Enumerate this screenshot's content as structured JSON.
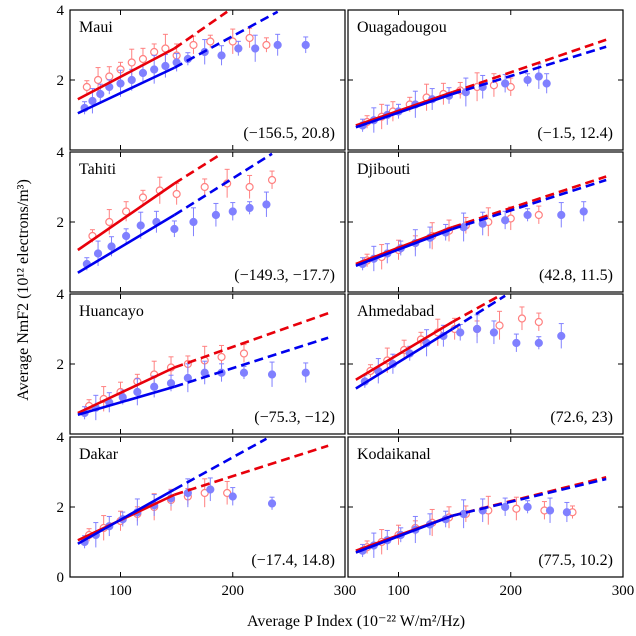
{
  "chart_data": {
    "type": "scatter",
    "xlabel": "Average P Index (10⁻²² W/m²/Hz)",
    "ylabel": "Average NmF2 (10¹² electrons/m³)",
    "xlim": [
      55,
      300
    ],
    "ylim": [
      0,
      4
    ],
    "x_ticks": [
      "100",
      "200",
      "300"
    ],
    "y_ticks": [
      "0",
      "2",
      "4"
    ],
    "colors": {
      "red_series": "#e8000b",
      "blue_series": "#0000ee",
      "red_points": "#ff8080",
      "blue_points": "#8080ff"
    },
    "panels": [
      {
        "title": "Maui",
        "coords": "(−156.5, 20.8)",
        "red_fit": {
          "solid": [
            [
              62,
              1.45
            ],
            [
              148,
              2.9
            ]
          ],
          "dashed": [
            [
              148,
              2.9
            ],
            [
              195,
              3.95
            ]
          ]
        },
        "blue_fit": {
          "solid": [
            [
              62,
              1.05
            ],
            [
              148,
              2.35
            ]
          ],
          "dashed": [
            [
              148,
              2.35
            ],
            [
              240,
              3.95
            ]
          ]
        },
        "red_points": [
          [
            70,
            1.8
          ],
          [
            80,
            2.0
          ],
          [
            90,
            2.1
          ],
          [
            100,
            2.3
          ],
          [
            110,
            2.5
          ],
          [
            120,
            2.6
          ],
          [
            130,
            2.8
          ],
          [
            140,
            2.9
          ],
          [
            150,
            2.7
          ],
          [
            165,
            3.0
          ],
          [
            180,
            3.1
          ],
          [
            200,
            3.1
          ],
          [
            215,
            3.2
          ],
          [
            230,
            3.0
          ]
        ],
        "blue_points": [
          [
            68,
            1.2
          ],
          [
            75,
            1.4
          ],
          [
            82,
            1.6
          ],
          [
            90,
            1.8
          ],
          [
            100,
            1.9
          ],
          [
            110,
            2.0
          ],
          [
            120,
            2.2
          ],
          [
            130,
            2.3
          ],
          [
            140,
            2.4
          ],
          [
            150,
            2.5
          ],
          [
            160,
            2.6
          ],
          [
            175,
            2.8
          ],
          [
            190,
            2.7
          ],
          [
            205,
            2.9
          ],
          [
            220,
            2.9
          ],
          [
            240,
            3.0
          ],
          [
            265,
            3.0
          ]
        ]
      },
      {
        "title": "Ouagadougou",
        "coords": "(−1.5, 12.4)",
        "red_fit": {
          "solid": [
            [
              62,
              0.7
            ],
            [
              148,
              1.65
            ]
          ],
          "dashed": [
            [
              148,
              1.65
            ],
            [
              285,
              3.15
            ]
          ]
        },
        "blue_fit": {
          "solid": [
            [
              62,
              0.65
            ],
            [
              148,
              1.6
            ]
          ],
          "dashed": [
            [
              148,
              1.6
            ],
            [
              285,
              2.95
            ]
          ]
        },
        "red_points": [
          [
            72,
            0.8
          ],
          [
            85,
            0.95
          ],
          [
            95,
            1.1
          ],
          [
            110,
            1.3
          ],
          [
            125,
            1.5
          ],
          [
            140,
            1.6
          ],
          [
            155,
            1.7
          ],
          [
            170,
            1.8
          ],
          [
            185,
            1.85
          ],
          [
            200,
            1.8
          ]
        ],
        "blue_points": [
          [
            68,
            0.7
          ],
          [
            78,
            0.85
          ],
          [
            90,
            1.0
          ],
          [
            100,
            1.1
          ],
          [
            115,
            1.3
          ],
          [
            130,
            1.45
          ],
          [
            145,
            1.55
          ],
          [
            160,
            1.65
          ],
          [
            175,
            1.8
          ],
          [
            195,
            1.9
          ],
          [
            215,
            2.0
          ],
          [
            225,
            2.1
          ],
          [
            232,
            1.9
          ]
        ]
      },
      {
        "title": "Tahiti",
        "coords": "(−149.3, −17.7)",
        "red_fit": {
          "solid": [
            [
              62,
              1.2
            ],
            [
              148,
              3.1
            ]
          ],
          "dashed": [
            [
              148,
              3.1
            ],
            [
              190,
              3.95
            ]
          ]
        },
        "blue_fit": {
          "solid": [
            [
              62,
              0.55
            ],
            [
              148,
              2.2
            ]
          ],
          "dashed": [
            [
              148,
              2.2
            ],
            [
              235,
              3.95
            ]
          ]
        },
        "red_points": [
          [
            75,
            1.6
          ],
          [
            90,
            2.0
          ],
          [
            105,
            2.3
          ],
          [
            120,
            2.7
          ],
          [
            135,
            2.9
          ],
          [
            150,
            2.8
          ],
          [
            175,
            3.0
          ],
          [
            195,
            3.1
          ],
          [
            215,
            3.0
          ],
          [
            235,
            3.2
          ]
        ],
        "blue_points": [
          [
            70,
            0.8
          ],
          [
            80,
            1.1
          ],
          [
            92,
            1.3
          ],
          [
            105,
            1.6
          ],
          [
            118,
            1.9
          ],
          [
            132,
            2.0
          ],
          [
            148,
            1.8
          ],
          [
            165,
            2.0
          ],
          [
            185,
            2.2
          ],
          [
            200,
            2.3
          ],
          [
            215,
            2.4
          ],
          [
            230,
            2.5
          ]
        ]
      },
      {
        "title": "Djibouti",
        "coords": "(42.8, 11.5)",
        "red_fit": {
          "solid": [
            [
              62,
              0.8
            ],
            [
              148,
              1.85
            ]
          ],
          "dashed": [
            [
              148,
              1.85
            ],
            [
              285,
              3.3
            ]
          ]
        },
        "blue_fit": {
          "solid": [
            [
              62,
              0.75
            ],
            [
              148,
              1.8
            ]
          ],
          "dashed": [
            [
              148,
              1.8
            ],
            [
              285,
              3.2
            ]
          ]
        },
        "red_points": [
          [
            72,
            0.9
          ],
          [
            85,
            1.0
          ],
          [
            100,
            1.2
          ],
          [
            115,
            1.4
          ],
          [
            130,
            1.6
          ],
          [
            145,
            1.75
          ],
          [
            160,
            1.9
          ],
          [
            180,
            2.0
          ],
          [
            200,
            2.1
          ],
          [
            225,
            2.2
          ]
        ],
        "blue_points": [
          [
            68,
            0.8
          ],
          [
            78,
            0.95
          ],
          [
            90,
            1.1
          ],
          [
            102,
            1.25
          ],
          [
            115,
            1.4
          ],
          [
            128,
            1.55
          ],
          [
            142,
            1.7
          ],
          [
            158,
            1.85
          ],
          [
            175,
            1.95
          ],
          [
            195,
            2.05
          ],
          [
            215,
            2.2
          ],
          [
            245,
            2.2
          ],
          [
            265,
            2.3
          ]
        ]
      },
      {
        "title": "Huancayo",
        "coords": "(−75.3, −12)",
        "red_fit": {
          "solid": [
            [
              62,
              0.6
            ],
            [
              148,
              1.9
            ]
          ],
          "dashed": [
            [
              148,
              1.9
            ],
            [
              285,
              3.45
            ]
          ]
        },
        "blue_fit": {
          "solid": [
            [
              62,
              0.55
            ],
            [
              148,
              1.35
            ]
          ],
          "dashed": [
            [
              148,
              1.35
            ],
            [
              285,
              2.75
            ]
          ]
        },
        "red_points": [
          [
            72,
            0.8
          ],
          [
            85,
            1.0
          ],
          [
            100,
            1.2
          ],
          [
            115,
            1.5
          ],
          [
            130,
            1.7
          ],
          [
            145,
            1.9
          ],
          [
            160,
            2.0
          ],
          [
            175,
            2.1
          ],
          [
            190,
            2.2
          ],
          [
            210,
            2.3
          ]
        ],
        "blue_points": [
          [
            68,
            0.6
          ],
          [
            78,
            0.75
          ],
          [
            90,
            0.9
          ],
          [
            102,
            1.05
          ],
          [
            115,
            1.2
          ],
          [
            130,
            1.35
          ],
          [
            145,
            1.45
          ],
          [
            160,
            1.6
          ],
          [
            175,
            1.75
          ],
          [
            190,
            1.75
          ],
          [
            210,
            1.75
          ],
          [
            235,
            1.7
          ],
          [
            265,
            1.75
          ]
        ]
      },
      {
        "title": "Ahmedabad",
        "coords": "(72.6, 23)",
        "red_fit": {
          "solid": [
            [
              62,
              1.55
            ],
            [
              148,
              3.2
            ]
          ],
          "dashed": [
            [
              148,
              3.2
            ],
            [
              190,
              3.95
            ]
          ]
        },
        "blue_fit": {
          "solid": [
            [
              62,
              1.3
            ],
            [
              148,
              3.0
            ]
          ],
          "dashed": [
            [
              148,
              3.0
            ],
            [
              195,
              3.95
            ]
          ]
        },
        "red_points": [
          [
            75,
            1.8
          ],
          [
            90,
            2.1
          ],
          [
            105,
            2.4
          ],
          [
            120,
            2.7
          ],
          [
            135,
            2.9
          ],
          [
            150,
            3.0
          ],
          [
            170,
            3.0
          ],
          [
            190,
            3.1
          ],
          [
            210,
            3.3
          ],
          [
            225,
            3.2
          ]
        ],
        "blue_points": [
          [
            70,
            1.5
          ],
          [
            82,
            1.8
          ],
          [
            95,
            2.0
          ],
          [
            110,
            2.3
          ],
          [
            125,
            2.6
          ],
          [
            140,
            2.8
          ],
          [
            155,
            2.9
          ],
          [
            170,
            3.0
          ],
          [
            185,
            2.9
          ],
          [
            205,
            2.6
          ],
          [
            225,
            2.6
          ],
          [
            245,
            2.8
          ]
        ]
      },
      {
        "title": "Dakar",
        "coords": "(−17.4, 14.8)",
        "red_fit": {
          "solid": [
            [
              62,
              1.05
            ],
            [
              148,
              2.35
            ]
          ],
          "dashed": [
            [
              148,
              2.35
            ],
            [
              285,
              3.75
            ]
          ]
        },
        "blue_fit": {
          "solid": [
            [
              62,
              0.95
            ],
            [
              148,
              2.5
            ]
          ],
          "dashed": [
            [
              148,
              2.5
            ],
            [
              230,
              3.95
            ]
          ]
        },
        "red_points": [
          [
            72,
            1.2
          ],
          [
            85,
            1.4
          ],
          [
            100,
            1.6
          ],
          [
            115,
            1.8
          ],
          [
            130,
            2.0
          ],
          [
            145,
            2.2
          ],
          [
            160,
            2.3
          ],
          [
            175,
            2.4
          ],
          [
            195,
            2.4
          ]
        ],
        "blue_points": [
          [
            68,
            1.0
          ],
          [
            78,
            1.2
          ],
          [
            90,
            1.45
          ],
          [
            102,
            1.65
          ],
          [
            115,
            1.85
          ],
          [
            130,
            2.05
          ],
          [
            145,
            2.25
          ],
          [
            160,
            2.4
          ],
          [
            180,
            2.5
          ],
          [
            200,
            2.3
          ],
          [
            235,
            2.1
          ]
        ]
      },
      {
        "title": "Kodaikanal",
        "coords": "(77.5, 10.2)",
        "red_fit": {
          "solid": [
            [
              62,
              0.75
            ],
            [
              148,
              1.75
            ]
          ],
          "dashed": [
            [
              148,
              1.75
            ],
            [
              285,
              2.85
            ]
          ]
        },
        "blue_fit": {
          "solid": [
            [
              62,
              0.7
            ],
            [
              148,
              1.75
            ]
          ],
          "dashed": [
            [
              148,
              1.75
            ],
            [
              285,
              2.8
            ]
          ]
        },
        "red_points": [
          [
            72,
            0.85
          ],
          [
            85,
            1.0
          ],
          [
            100,
            1.2
          ],
          [
            115,
            1.4
          ],
          [
            130,
            1.55
          ],
          [
            145,
            1.7
          ],
          [
            160,
            1.8
          ],
          [
            180,
            1.9
          ],
          [
            205,
            1.95
          ],
          [
            230,
            1.9
          ],
          [
            255,
            1.85
          ]
        ],
        "blue_points": [
          [
            68,
            0.75
          ],
          [
            78,
            0.9
          ],
          [
            90,
            1.05
          ],
          [
            102,
            1.2
          ],
          [
            115,
            1.35
          ],
          [
            128,
            1.5
          ],
          [
            142,
            1.65
          ],
          [
            158,
            1.8
          ],
          [
            175,
            1.9
          ],
          [
            195,
            2.0
          ],
          [
            215,
            2.0
          ],
          [
            235,
            1.9
          ],
          [
            250,
            1.85
          ]
        ]
      }
    ]
  }
}
